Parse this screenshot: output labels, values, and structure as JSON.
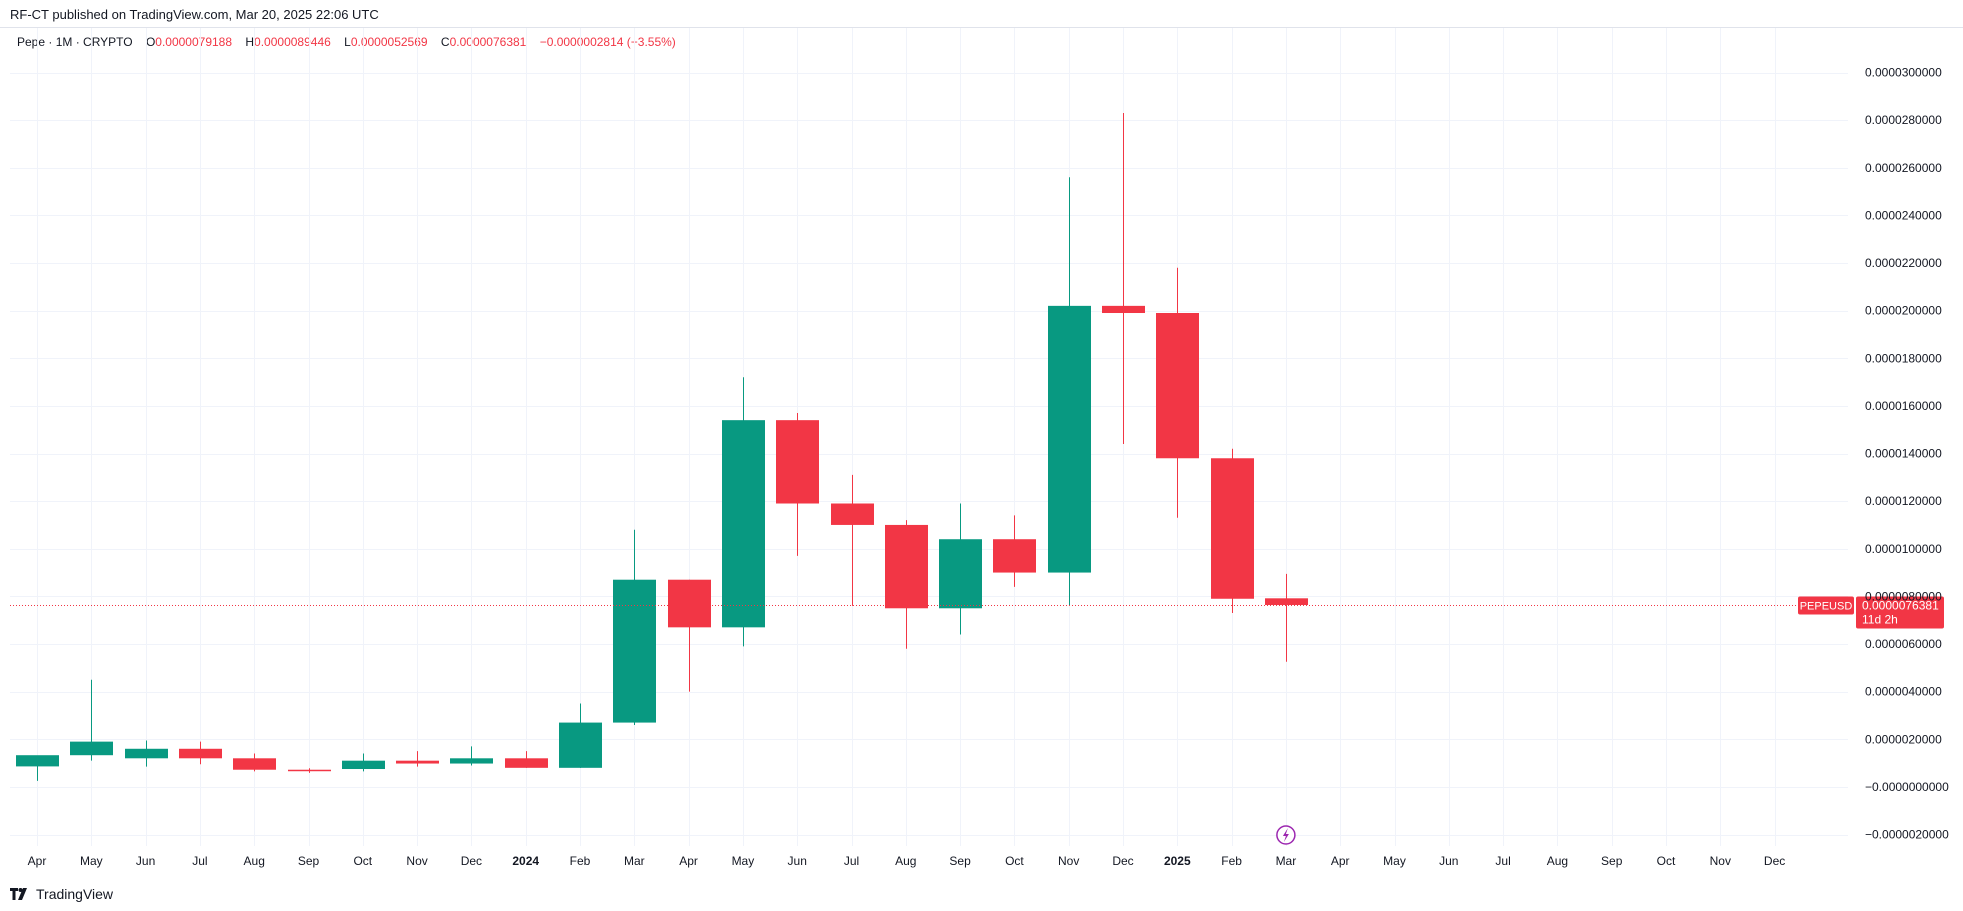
{
  "header": {
    "published": "RF-CT published on TradingView.com, Mar 20, 2025 22:06 UTC"
  },
  "legend": {
    "symbol": "Pepe · 1M · CRYPTO",
    "o_label": "O",
    "o_value": "0.0000079188",
    "h_label": "H",
    "h_value": "0.0000089446",
    "l_label": "L",
    "l_value": "0.0000052569",
    "c_label": "C",
    "c_value": "0.0000076381",
    "change": "−0.0000002814 (−3.55%)"
  },
  "price_tag": {
    "symbol": "PEPEUSD",
    "price": "0.0000076381",
    "countdown": "11d 2h"
  },
  "footer": {
    "brand": "TradingView"
  },
  "colors": {
    "up": "#089981",
    "down": "#f23645",
    "grid": "#f0f3fa",
    "event": "#9c27b0"
  },
  "icons": {
    "event_marker": "lightning-icon",
    "brand_logo": "tradingview-logo-icon"
  },
  "chart_data": {
    "type": "candlestick",
    "ylim": [
      -2e-06,
      3e-05
    ],
    "y_ticks": [
      {
        "value": 3e-05,
        "label": "0.0000300000"
      },
      {
        "value": 2.8e-05,
        "label": "0.0000280000"
      },
      {
        "value": 2.6e-05,
        "label": "0.0000260000"
      },
      {
        "value": 2.4e-05,
        "label": "0.0000240000"
      },
      {
        "value": 2.2e-05,
        "label": "0.0000220000"
      },
      {
        "value": 2e-05,
        "label": "0.0000200000"
      },
      {
        "value": 1.8e-05,
        "label": "0.0000180000"
      },
      {
        "value": 1.6e-05,
        "label": "0.0000160000"
      },
      {
        "value": 1.4e-05,
        "label": "0.0000140000"
      },
      {
        "value": 1.2e-05,
        "label": "0.0000120000"
      },
      {
        "value": 1e-05,
        "label": "0.0000100000"
      },
      {
        "value": 8e-06,
        "label": "0.0000080000"
      },
      {
        "value": 6e-06,
        "label": "0.0000060000"
      },
      {
        "value": 4e-06,
        "label": "0.0000040000"
      },
      {
        "value": 2e-06,
        "label": "0.0000020000"
      },
      {
        "value": 0,
        "label": "−0.0000000000"
      },
      {
        "value": -2e-06,
        "label": "−0.0000020000"
      }
    ],
    "x_labels": [
      "Apr",
      "May",
      "Jun",
      "Jul",
      "Aug",
      "Sep",
      "Oct",
      "Nov",
      "Dec",
      "2024",
      "Feb",
      "Mar",
      "Apr",
      "May",
      "Jun",
      "Jul",
      "Aug",
      "Sep",
      "Oct",
      "Nov",
      "Dec",
      "2025",
      "Feb",
      "Mar",
      "Apr",
      "May",
      "Jun",
      "Jul",
      "Aug",
      "Sep",
      "Oct",
      "Nov",
      "Dec"
    ],
    "bold_x_labels": [
      "2024",
      "2025"
    ],
    "last_price": 7.6381e-06,
    "event_marker_at": "Mar",
    "candles": [
      {
        "month": "Apr",
        "o": 8.6e-07,
        "h": 1.2e-06,
        "l": 2.5e-07,
        "c": 1.33e-06
      },
      {
        "month": "May",
        "o": 1.33e-06,
        "h": 4.5e-06,
        "l": 1.1e-06,
        "c": 1.9e-06
      },
      {
        "month": "Jun",
        "o": 1.2e-06,
        "h": 1.95e-06,
        "l": 8.5e-07,
        "c": 1.6e-06
      },
      {
        "month": "Jul",
        "o": 1.6e-06,
        "h": 1.9e-06,
        "l": 9.5e-07,
        "c": 1.2e-06
      },
      {
        "month": "Aug",
        "o": 1.2e-06,
        "h": 1.4e-06,
        "l": 6.5e-07,
        "c": 7.2e-07
      },
      {
        "month": "Sep",
        "o": 7.2e-07,
        "h": 7.8e-07,
        "l": 5.9e-07,
        "c": 6.6e-07
      },
      {
        "month": "Oct",
        "o": 7.5e-07,
        "h": 1.4e-06,
        "l": 6.5e-07,
        "c": 1.1e-06
      },
      {
        "month": "Nov",
        "o": 1.1e-06,
        "h": 1.5e-06,
        "l": 8.5e-07,
        "c": 9.8e-07
      },
      {
        "month": "Dec",
        "o": 9.8e-07,
        "h": 1.7e-06,
        "l": 9e-07,
        "c": 1.2e-06
      },
      {
        "month": "2024",
        "o": 1.2e-06,
        "h": 1.5e-06,
        "l": 8e-07,
        "c": 8e-07
      },
      {
        "month": "Feb",
        "o": 8e-07,
        "h": 3.5e-06,
        "l": 8e-07,
        "c": 2.7e-06
      },
      {
        "month": "Mar",
        "o": 2.7e-06,
        "h": 1.08e-05,
        "l": 2.6e-06,
        "c": 8.7e-06
      },
      {
        "month": "Apr",
        "o": 8.7e-06,
        "h": 8.7e-06,
        "l": 4e-06,
        "c": 6.7e-06
      },
      {
        "month": "May",
        "o": 6.7e-06,
        "h": 1.72e-05,
        "l": 5.9e-06,
        "c": 1.54e-05
      },
      {
        "month": "Jun",
        "o": 1.54e-05,
        "h": 1.57e-05,
        "l": 9.7e-06,
        "c": 1.19e-05
      },
      {
        "month": "Jul",
        "o": 1.19e-05,
        "h": 1.31e-05,
        "l": 7.6e-06,
        "c": 1.1e-05
      },
      {
        "month": "Aug",
        "o": 1.1e-05,
        "h": 1.12e-05,
        "l": 5.8e-06,
        "c": 7.5e-06
      },
      {
        "month": "Sep",
        "o": 7.5e-06,
        "h": 1.19e-05,
        "l": 6.4e-06,
        "c": 1.04e-05
      },
      {
        "month": "Oct",
        "o": 1.04e-05,
        "h": 1.14e-05,
        "l": 8.4e-06,
        "c": 9e-06
      },
      {
        "month": "Nov",
        "o": 9e-06,
        "h": 2.56e-05,
        "l": 7.6e-06,
        "c": 2.02e-05
      },
      {
        "month": "Dec",
        "o": 2.02e-05,
        "h": 2.83e-05,
        "l": 1.44e-05,
        "c": 1.99e-05
      },
      {
        "month": "2025",
        "o": 1.99e-05,
        "h": 2.18e-05,
        "l": 1.13e-05,
        "c": 1.38e-05
      },
      {
        "month": "Feb",
        "o": 1.38e-05,
        "h": 1.42e-05,
        "l": 7.3e-06,
        "c": 7.9e-06
      },
      {
        "month": "Mar",
        "o": 7.9188e-06,
        "h": 8.9446e-06,
        "l": 5.2569e-06,
        "c": 7.6381e-06
      }
    ]
  }
}
